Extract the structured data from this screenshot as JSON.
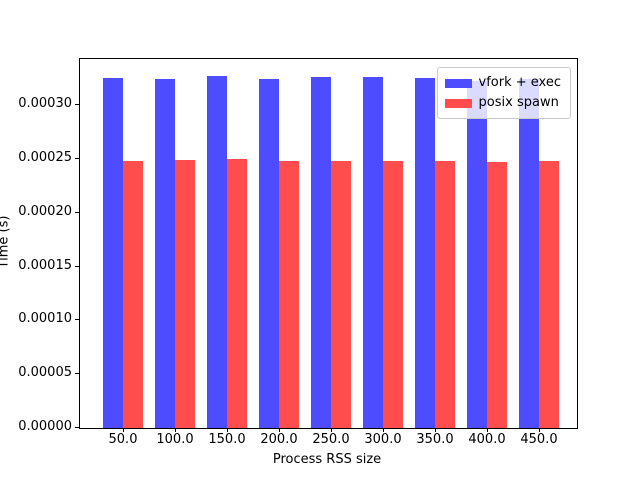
{
  "figure": {
    "background": "#ffffff",
    "border_color": "#000000"
  },
  "chart_data": {
    "type": "bar",
    "title": "",
    "xlabel": "Process RSS size",
    "ylabel": "Time (s)",
    "categories": [
      "50.0",
      "100.0",
      "150.0",
      "200.0",
      "250.0",
      "300.0",
      "350.0",
      "400.0",
      "450.0"
    ],
    "x_values": [
      50,
      100,
      150,
      200,
      250,
      300,
      350,
      400,
      450
    ],
    "series": [
      {
        "name": "vfork + exec",
        "color": "#4d4dff",
        "values": [
          0.000325,
          0.000324,
          0.000327,
          0.000324,
          0.000326,
          0.000326,
          0.000325,
          0.000323,
          0.000324
        ]
      },
      {
        "name": "posix spawn",
        "color": "#ff4d4d",
        "values": [
          0.000248,
          0.000249,
          0.00025,
          0.000248,
          0.000248,
          0.000248,
          0.000248,
          0.000247,
          0.000248
        ]
      }
    ],
    "yticks": {
      "values": [
        0.0,
        5e-05,
        0.0001,
        0.00015,
        0.0002,
        0.00025,
        0.0003
      ],
      "labels": [
        "0.00000",
        "0.00005",
        "0.00010",
        "0.00015",
        "0.00020",
        "0.00025",
        "0.00030"
      ]
    },
    "ylim": [
      0,
      0.000343
    ],
    "xlim": [
      8.7,
      486.5
    ],
    "grid": false,
    "legend": {
      "position": "upper right",
      "background_alpha": 0.8,
      "entries": [
        "vfork + exec",
        "posix spawn"
      ]
    }
  }
}
